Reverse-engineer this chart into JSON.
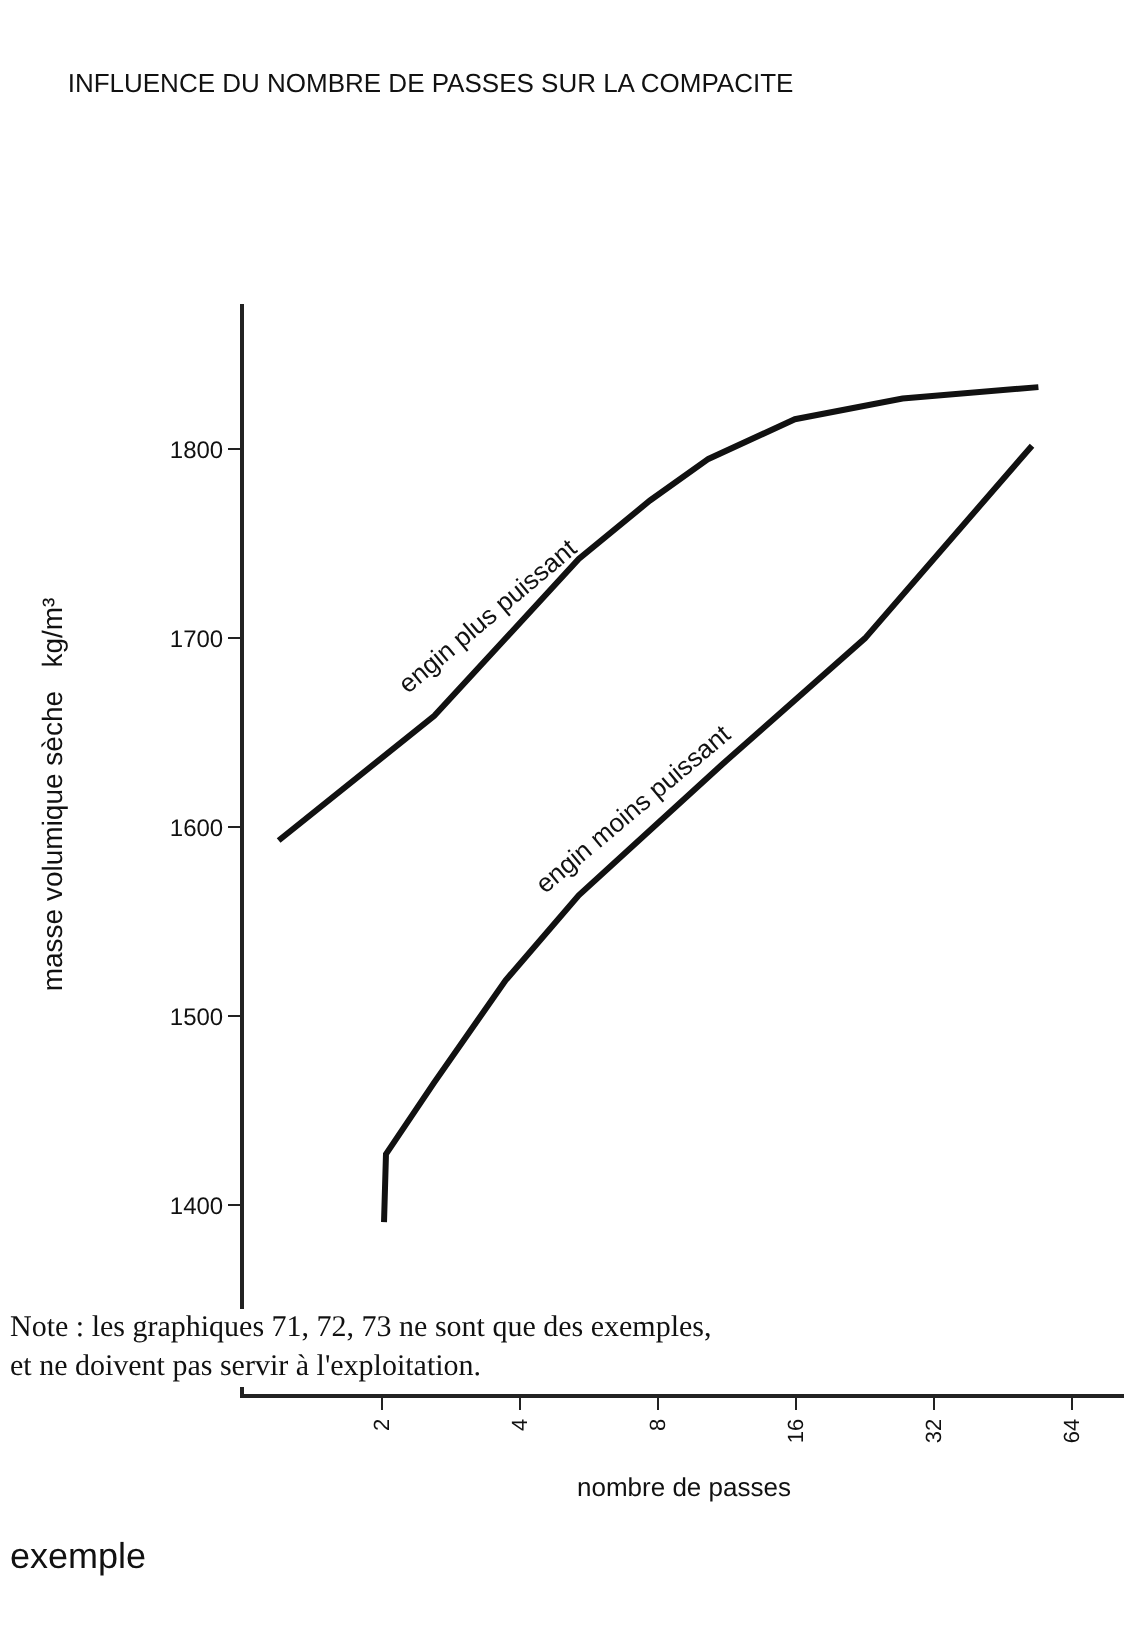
{
  "chart_data": {
    "type": "line",
    "title": "INFLUENCE DU NOMBRE DE PASSES SUR LA COMPACITE",
    "xlabel": "nombre de passes",
    "ylabel": "masse volumique sèche   kg/m³",
    "log": "x",
    "xlim": [
      1,
      83
    ],
    "xticks": [
      2,
      4,
      8,
      16,
      32,
      64
    ],
    "ylim": [
      1300,
      1877
    ],
    "yticks": [
      1400,
      1500,
      1600,
      1700,
      1800
    ],
    "series": [
      {
        "name": "engin plus puissant",
        "color": "#111111",
        "x": [
          1.19,
          2.6,
          5.37,
          7.68,
          10.3,
          15.9,
          27.3,
          54.0
        ],
        "values": [
          1593,
          1659,
          1742,
          1773,
          1795,
          1816,
          1827,
          1833
        ]
      },
      {
        "name": "engin moins puissant",
        "color": "#111111",
        "x": [
          2.02,
          2.04,
          2.6,
          3.72,
          5.37,
          11.0,
          22.6,
          52.3
        ],
        "values": [
          1391,
          1427,
          1465,
          1519,
          1564,
          1633,
          1700,
          1802
        ]
      }
    ],
    "annotations": [
      "Note : les graphiques 71, 72, 73 ne sont que des exemples, et ne doivent pas servir à l'exploitation.",
      "exemple"
    ],
    "legend": false
  }
}
